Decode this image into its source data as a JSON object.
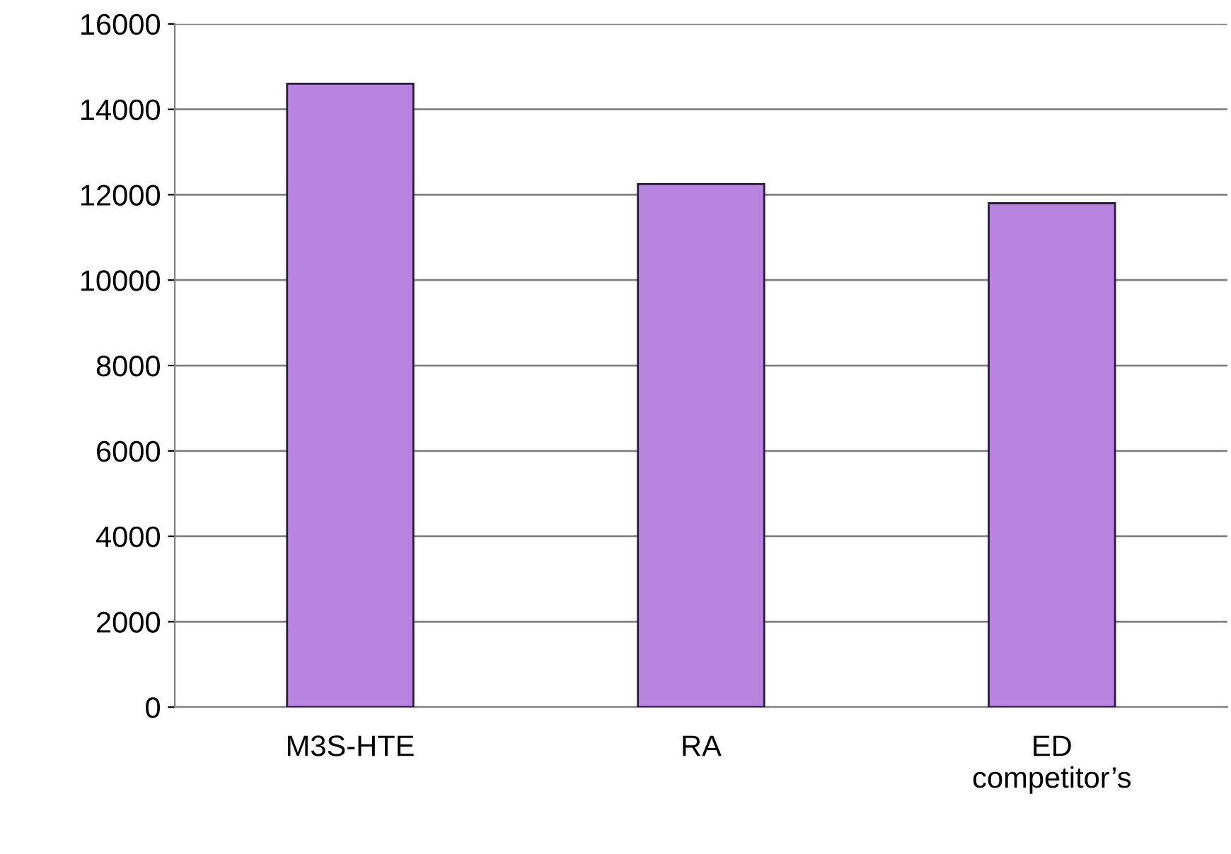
{
  "chart_data": {
    "type": "bar",
    "categories": [
      "M3S-HTE",
      "RA",
      "ED\ncompetitor’s"
    ],
    "values": [
      14600,
      12250,
      11800
    ],
    "color": "#b784e0",
    "ylim": [
      0,
      16000
    ],
    "yticks": [
      0,
      2000,
      4000,
      6000,
      8000,
      10000,
      12000,
      14000,
      16000
    ],
    "grid": "y"
  }
}
